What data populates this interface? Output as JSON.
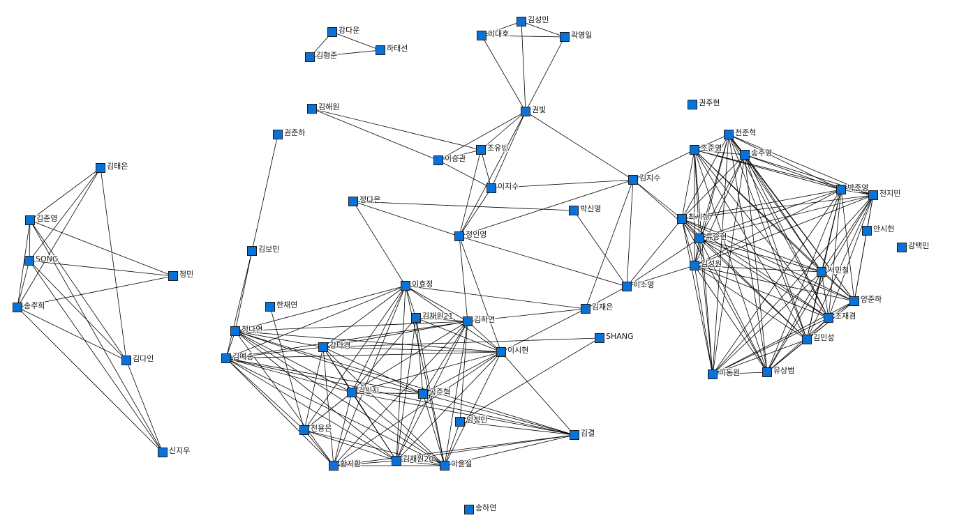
{
  "diagram": {
    "type": "network",
    "node_color": "#0a72d6",
    "edge_color": "#000000",
    "nodes": [
      "강다운",
      "김형준",
      "하태선",
      "김성민",
      "이대호",
      "곽영일",
      "권빛",
      "김해원",
      "조유빈",
      "이승관",
      "이지수",
      "권준하",
      "정다은",
      "박신영",
      "정인영",
      "김지수",
      "권주현",
      "김태은",
      "김준영",
      "SONG",
      "송주희",
      "정민",
      "김다인",
      "신지우",
      "김보민",
      "한채연",
      "이효정",
      "정나연",
      "김예송",
      "강다경",
      "김채원21",
      "김하연",
      "이시현",
      "김재은",
      "이소영",
      "SHANG",
      "김민지",
      "공준혁",
      "임정민",
      "전용은",
      "김결",
      "황지환",
      "김채원20",
      "이윤설",
      "송하연",
      "전준혁",
      "조준영",
      "송주영",
      "최시현",
      "류승현",
      "김성원",
      "박준영",
      "천지민",
      "안시헌",
      "강택민",
      "서민철",
      "양준하",
      "조재겸",
      "김민성",
      "이동원",
      "유상범"
    ],
    "edges": [
      [
        0,
        1
      ],
      [
        0,
        2
      ],
      [
        1,
        2
      ],
      [
        3,
        4
      ],
      [
        3,
        5
      ],
      [
        4,
        5
      ],
      [
        3,
        6
      ],
      [
        4,
        6
      ],
      [
        5,
        6
      ],
      [
        6,
        8
      ],
      [
        6,
        9
      ],
      [
        6,
        10
      ],
      [
        6,
        14
      ],
      [
        6,
        15
      ],
      [
        7,
        8
      ],
      [
        7,
        9
      ],
      [
        9,
        8
      ],
      [
        9,
        10
      ],
      [
        8,
        10
      ],
      [
        10,
        14
      ],
      [
        10,
        15
      ],
      [
        8,
        14
      ],
      [
        12,
        13
      ],
      [
        12,
        14
      ],
      [
        12,
        26
      ],
      [
        13,
        34
      ],
      [
        14,
        15
      ],
      [
        14,
        34
      ],
      [
        14,
        31
      ],
      [
        14,
        32
      ],
      [
        15,
        34
      ],
      [
        15,
        33
      ],
      [
        15,
        48
      ],
      [
        15,
        49
      ],
      [
        15,
        46
      ],
      [
        11,
        24
      ],
      [
        24,
        27
      ],
      [
        24,
        28
      ],
      [
        34,
        33
      ],
      [
        34,
        50
      ],
      [
        34,
        49
      ],
      [
        34,
        48
      ],
      [
        26,
        33
      ],
      [
        33,
        31
      ],
      [
        33,
        32
      ],
      [
        35,
        29
      ],
      [
        35,
        38
      ],
      [
        17,
        18
      ],
      [
        17,
        19
      ],
      [
        17,
        20
      ],
      [
        17,
        22
      ],
      [
        18,
        19
      ],
      [
        18,
        20
      ],
      [
        19,
        20
      ],
      [
        18,
        21
      ],
      [
        19,
        21
      ],
      [
        20,
        21
      ],
      [
        18,
        22
      ],
      [
        19,
        22
      ],
      [
        20,
        22
      ],
      [
        18,
        23
      ],
      [
        19,
        23
      ],
      [
        20,
        23
      ],
      [
        22,
        23
      ],
      [
        26,
        27
      ],
      [
        26,
        28
      ],
      [
        26,
        29
      ],
      [
        26,
        30
      ],
      [
        26,
        31
      ],
      [
        26,
        32
      ],
      [
        26,
        36
      ],
      [
        26,
        41
      ],
      [
        26,
        42
      ],
      [
        26,
        43
      ],
      [
        26,
        39
      ],
      [
        27,
        28
      ],
      [
        27,
        29
      ],
      [
        27,
        31
      ],
      [
        27,
        32
      ],
      [
        27,
        36
      ],
      [
        27,
        37
      ],
      [
        27,
        40
      ],
      [
        27,
        42
      ],
      [
        27,
        43
      ],
      [
        27,
        41
      ],
      [
        28,
        29
      ],
      [
        28,
        31
      ],
      [
        28,
        32
      ],
      [
        28,
        36
      ],
      [
        28,
        37
      ],
      [
        28,
        39
      ],
      [
        28,
        41
      ],
      [
        28,
        42
      ],
      [
        28,
        43
      ],
      [
        28,
        40
      ],
      [
        29,
        31
      ],
      [
        29,
        32
      ],
      [
        29,
        36
      ],
      [
        29,
        37
      ],
      [
        29,
        41
      ],
      [
        29,
        42
      ],
      [
        29,
        43
      ],
      [
        29,
        39
      ],
      [
        30,
        31
      ],
      [
        30,
        32
      ],
      [
        30,
        36
      ],
      [
        30,
        42
      ],
      [
        30,
        43
      ],
      [
        30,
        37
      ],
      [
        31,
        32
      ],
      [
        31,
        36
      ],
      [
        31,
        37
      ],
      [
        31,
        41
      ],
      [
        31,
        42
      ],
      [
        31,
        43
      ],
      [
        31,
        38
      ],
      [
        32,
        36
      ],
      [
        32,
        41
      ],
      [
        32,
        42
      ],
      [
        32,
        43
      ],
      [
        32,
        40
      ],
      [
        32,
        37
      ],
      [
        36,
        41
      ],
      [
        36,
        42
      ],
      [
        36,
        43
      ],
      [
        36,
        39
      ],
      [
        36,
        40
      ],
      [
        36,
        37
      ],
      [
        37,
        42
      ],
      [
        37,
        43
      ],
      [
        37,
        40
      ],
      [
        38,
        40
      ],
      [
        38,
        43
      ],
      [
        39,
        41
      ],
      [
        39,
        42
      ],
      [
        39,
        43
      ],
      [
        41,
        42
      ],
      [
        41,
        43
      ],
      [
        41,
        40
      ],
      [
        42,
        43
      ],
      [
        42,
        40
      ],
      [
        43,
        40
      ],
      [
        25,
        39
      ],
      [
        53,
        52
      ],
      [
        53,
        56
      ]
    ],
    "dense_cluster": [
      45,
      46,
      47,
      48,
      49,
      50,
      51,
      52,
      55,
      56,
      57,
      58,
      59,
      60
    ]
  }
}
